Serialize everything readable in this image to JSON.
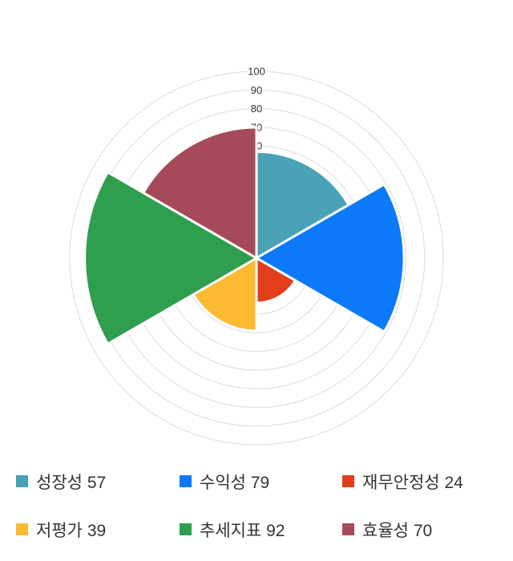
{
  "chart_data": {
    "type": "pie",
    "variant": "polar-area-rose",
    "title": "",
    "categories": [
      "성장성",
      "수익성",
      "재무안정성",
      "저평가",
      "추세지표",
      "효율성"
    ],
    "values": [
      57,
      79,
      24,
      39,
      92,
      70
    ],
    "colors": [
      "#4AA2B7",
      "#0C7AF8",
      "#E23E1A",
      "#FCBA33",
      "#2F9E4F",
      "#A64A59"
    ],
    "sector_angle_deg": 60,
    "start_at": "top",
    "direction": "clockwise",
    "grid": "on",
    "legend_position": "bottom",
    "radial_axis": {
      "min": 0,
      "max": 100,
      "tick_interval": 10,
      "visible_tick_labels": [
        "60",
        "70",
        "80",
        "90",
        "100"
      ]
    }
  },
  "legend": {
    "items": [
      {
        "label": "성장성",
        "value": "57",
        "color": "#4AA2B7"
      },
      {
        "label": "수익성",
        "value": "79",
        "color": "#0C7AF8"
      },
      {
        "label": "재무안정성",
        "value": "24",
        "color": "#E23E1A"
      },
      {
        "label": "저평가",
        "value": "39",
        "color": "#FCBA33"
      },
      {
        "label": "추세지표",
        "value": "92",
        "color": "#2F9E4F"
      },
      {
        "label": "효율성",
        "value": "70",
        "color": "#A64A59"
      }
    ]
  },
  "style": {
    "background": "#FFFFFF",
    "grid_color": "#DCDCDC",
    "tick_label_color": "#333333",
    "legend_text_color": "#333333"
  }
}
